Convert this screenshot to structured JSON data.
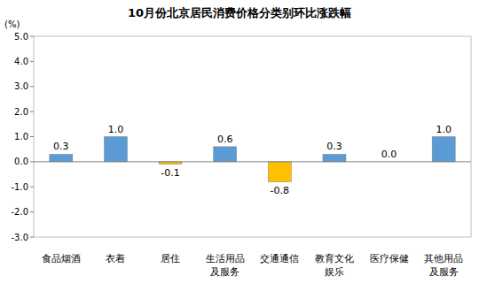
{
  "chart_data": {
    "type": "bar",
    "title": "10月份北京居民消费价格分类别环比涨跌幅",
    "y_label": "(%)",
    "categories": [
      "食品烟酒",
      "衣着",
      "居住",
      "生活用品及服务",
      "交通通信",
      "教育文化娱乐",
      "医疗保健",
      "其他用品及服务"
    ],
    "values": [
      0.3,
      1.0,
      -0.1,
      0.6,
      -0.8,
      0.3,
      0.0,
      1.0
    ],
    "value_labels": [
      "0.3",
      "1.0",
      "-0.1",
      "0.6",
      "-0.8",
      "0.3",
      "0.0",
      "1.0"
    ],
    "colors": [
      "#5b9bd5",
      "#5b9bd5",
      "#ffc000",
      "#5b9bd5",
      "#ffc000",
      "#5b9bd5",
      "#5b9bd5",
      "#5b9bd5"
    ],
    "ylim": [
      -3,
      5
    ],
    "yticks": [
      {
        "value": 5,
        "label": "5.0"
      },
      {
        "value": 4,
        "label": "4.0"
      },
      {
        "value": 3,
        "label": "3.0"
      },
      {
        "value": 2,
        "label": "2.0"
      },
      {
        "value": 1,
        "label": "1.0"
      },
      {
        "value": 0,
        "label": "0.0"
      },
      {
        "value": -1,
        "label": "-1.0"
      },
      {
        "value": -2,
        "label": "-2.0"
      },
      {
        "value": -3,
        "label": "-3.0"
      }
    ],
    "grid": false,
    "data_labels": true
  }
}
